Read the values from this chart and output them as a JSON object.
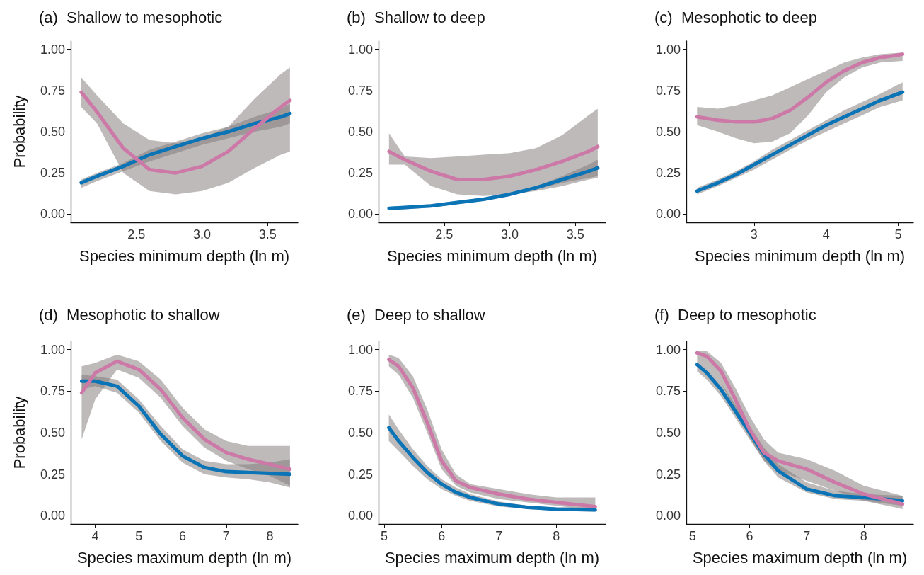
{
  "chart_data": [
    {
      "type": "line",
      "title": "(a)  Shallow to mesophotic",
      "xlabel": "Species minimum depth (ln m)",
      "ylabel": "Probability",
      "marker": "none",
      "grid": false,
      "x": [
        2.08,
        2.2,
        2.4,
        2.6,
        2.8,
        3.0,
        3.2,
        3.4,
        3.6,
        3.67
      ],
      "xlim": [
        2.0,
        3.73
      ],
      "xticks": [
        2.5,
        {
          "value": 3,
          "label": "3.0"
        },
        3.5
      ],
      "ylim": [
        -0.05,
        1.05
      ],
      "yticks": [
        {
          "value": 0,
          "label": "0.00"
        },
        {
          "value": 0.25,
          "label": "0.25"
        },
        {
          "value": 0.5,
          "label": "0.50"
        },
        {
          "value": 0.75,
          "label": "0.75"
        },
        {
          "value": 1,
          "label": "1.00"
        }
      ],
      "series": [
        {
          "color": "#0a74b6",
          "values": [
            0.19,
            0.23,
            0.29,
            0.36,
            0.41,
            0.46,
            0.5,
            0.55,
            0.59,
            0.61
          ],
          "lower": [
            0.16,
            0.2,
            0.26,
            0.32,
            0.37,
            0.42,
            0.46,
            0.5,
            0.53,
            0.55
          ],
          "upper": [
            0.21,
            0.25,
            0.31,
            0.39,
            0.44,
            0.49,
            0.53,
            0.59,
            0.64,
            0.67
          ]
        },
        {
          "color": "#cc79a7",
          "values": [
            0.74,
            0.62,
            0.4,
            0.27,
            0.25,
            0.29,
            0.38,
            0.52,
            0.65,
            0.69
          ],
          "lower": [
            0.65,
            0.55,
            0.25,
            0.14,
            0.12,
            0.14,
            0.19,
            0.28,
            0.36,
            0.38
          ],
          "upper": [
            0.83,
            0.72,
            0.55,
            0.45,
            0.43,
            0.46,
            0.53,
            0.7,
            0.85,
            0.89
          ]
        }
      ]
    },
    {
      "type": "line",
      "title": "(b)  Shallow to deep",
      "xlabel": "Species minimum depth (ln m)",
      "marker": "none",
      "grid": false,
      "x": [
        2.08,
        2.2,
        2.4,
        2.6,
        2.8,
        3.0,
        3.2,
        3.4,
        3.6,
        3.67
      ],
      "xlim": [
        2.0,
        3.73
      ],
      "xticks": [
        2.5,
        {
          "value": 3,
          "label": "3.0"
        },
        3.5
      ],
      "ylim": [
        -0.05,
        1.05
      ],
      "yticks": [
        {
          "value": 0,
          "label": "0.00"
        },
        {
          "value": 0.25,
          "label": "0.25"
        },
        {
          "value": 0.5,
          "label": "0.50"
        },
        {
          "value": 0.75,
          "label": "0.75"
        },
        {
          "value": 1,
          "label": "1.00"
        }
      ],
      "series": [
        {
          "color": "#0a74b6",
          "values": [
            0.035,
            0.04,
            0.05,
            0.07,
            0.09,
            0.12,
            0.16,
            0.21,
            0.26,
            0.28
          ],
          "lower": [
            0.025,
            0.03,
            0.04,
            0.06,
            0.08,
            0.11,
            0.15,
            0.19,
            0.22,
            0.23
          ],
          "upper": [
            0.045,
            0.05,
            0.06,
            0.08,
            0.1,
            0.13,
            0.17,
            0.23,
            0.3,
            0.33
          ]
        },
        {
          "color": "#cc79a7",
          "values": [
            0.38,
            0.33,
            0.26,
            0.21,
            0.21,
            0.23,
            0.27,
            0.32,
            0.38,
            0.41
          ],
          "lower": [
            0.3,
            0.3,
            0.17,
            0.12,
            0.11,
            0.12,
            0.14,
            0.17,
            0.21,
            0.22
          ],
          "upper": [
            0.49,
            0.35,
            0.34,
            0.35,
            0.36,
            0.37,
            0.4,
            0.48,
            0.6,
            0.64
          ]
        }
      ]
    },
    {
      "type": "line",
      "title": "(c)  Mesophotic to deep",
      "xlabel": "Species minimum depth (ln m)",
      "marker": "none",
      "grid": false,
      "x": [
        2.21,
        2.5,
        2.75,
        3.0,
        3.25,
        3.5,
        3.75,
        4.0,
        4.25,
        4.5,
        4.75,
        5.06
      ],
      "xlim": [
        2.06,
        5.21
      ],
      "xticks": [
        3,
        4,
        5
      ],
      "ylim": [
        -0.05,
        1.05
      ],
      "yticks": [
        {
          "value": 0,
          "label": "0.00"
        },
        {
          "value": 0.25,
          "label": "0.25"
        },
        {
          "value": 0.5,
          "label": "0.50"
        },
        {
          "value": 0.75,
          "label": "0.75"
        },
        {
          "value": 1,
          "label": "1.00"
        }
      ],
      "series": [
        {
          "color": "#0a74b6",
          "values": [
            0.14,
            0.19,
            0.24,
            0.3,
            0.36,
            0.42,
            0.48,
            0.54,
            0.59,
            0.64,
            0.69,
            0.74
          ],
          "lower": [
            0.12,
            0.17,
            0.22,
            0.27,
            0.33,
            0.39,
            0.45,
            0.5,
            0.55,
            0.6,
            0.65,
            0.69
          ],
          "upper": [
            0.16,
            0.21,
            0.26,
            0.32,
            0.39,
            0.45,
            0.51,
            0.57,
            0.63,
            0.68,
            0.73,
            0.8
          ]
        },
        {
          "color": "#cc79a7",
          "values": [
            0.59,
            0.57,
            0.56,
            0.56,
            0.58,
            0.63,
            0.71,
            0.8,
            0.87,
            0.92,
            0.95,
            0.97
          ],
          "lower": [
            0.54,
            0.5,
            0.46,
            0.43,
            0.44,
            0.49,
            0.6,
            0.74,
            0.83,
            0.89,
            0.92,
            0.93
          ],
          "upper": [
            0.65,
            0.64,
            0.66,
            0.69,
            0.72,
            0.77,
            0.82,
            0.87,
            0.92,
            0.95,
            0.97,
            0.98
          ]
        }
      ]
    },
    {
      "type": "line",
      "title": "(d)  Mesophotic to shallow",
      "xlabel": "Species maximum depth (ln m)",
      "ylabel": "Probability",
      "marker": "none",
      "grid": false,
      "x": [
        3.69,
        4.0,
        4.5,
        5.0,
        5.5,
        6.0,
        6.5,
        7.0,
        7.5,
        8.0,
        8.46
      ],
      "xlim": [
        3.44,
        8.64
      ],
      "xticks": [
        4,
        5,
        6,
        7,
        8
      ],
      "ylim": [
        -0.05,
        1.05
      ],
      "yticks": [
        {
          "value": 0,
          "label": "0.00"
        },
        {
          "value": 0.25,
          "label": "0.25"
        },
        {
          "value": 0.5,
          "label": "0.50"
        },
        {
          "value": 0.75,
          "label": "0.75"
        },
        {
          "value": 1,
          "label": "1.00"
        }
      ],
      "series": [
        {
          "color": "#0a74b6",
          "values": [
            0.81,
            0.81,
            0.78,
            0.66,
            0.49,
            0.36,
            0.29,
            0.265,
            0.26,
            0.255,
            0.25
          ],
          "lower": [
            0.76,
            0.78,
            0.74,
            0.62,
            0.45,
            0.32,
            0.25,
            0.23,
            0.22,
            0.2,
            0.17
          ],
          "upper": [
            0.85,
            0.84,
            0.82,
            0.7,
            0.54,
            0.4,
            0.33,
            0.31,
            0.31,
            0.32,
            0.34
          ]
        },
        {
          "color": "#cc79a7",
          "values": [
            0.74,
            0.86,
            0.93,
            0.88,
            0.76,
            0.59,
            0.46,
            0.38,
            0.34,
            0.31,
            0.28
          ],
          "lower": [
            0.46,
            0.7,
            0.88,
            0.83,
            0.71,
            0.54,
            0.41,
            0.33,
            0.28,
            0.24,
            0.18
          ],
          "upper": [
            0.9,
            0.92,
            0.97,
            0.93,
            0.82,
            0.65,
            0.52,
            0.45,
            0.42,
            0.42,
            0.42
          ]
        }
      ]
    },
    {
      "type": "line",
      "title": "(e)  Deep to shallow",
      "xlabel": "Species maximum depth (ln m)",
      "marker": "none",
      "grid": false,
      "x": [
        5.08,
        5.25,
        5.5,
        5.75,
        6.0,
        6.25,
        6.5,
        7.0,
        7.5,
        8.0,
        8.68
      ],
      "xlim": [
        4.9,
        8.86
      ],
      "xticks": [
        5,
        6,
        7,
        8
      ],
      "ylim": [
        -0.05,
        1.05
      ],
      "yticks": [
        {
          "value": 0,
          "label": "0.00"
        },
        {
          "value": 0.25,
          "label": "0.25"
        },
        {
          "value": 0.5,
          "label": "0.50"
        },
        {
          "value": 0.75,
          "label": "0.75"
        },
        {
          "value": 1,
          "label": "1.00"
        }
      ],
      "series": [
        {
          "color": "#0a74b6",
          "values": [
            0.53,
            0.45,
            0.35,
            0.26,
            0.19,
            0.14,
            0.11,
            0.07,
            0.05,
            0.04,
            0.035
          ],
          "lower": [
            0.45,
            0.39,
            0.3,
            0.22,
            0.16,
            0.12,
            0.09,
            0.055,
            0.04,
            0.03,
            0.025
          ],
          "upper": [
            0.61,
            0.52,
            0.4,
            0.3,
            0.22,
            0.17,
            0.13,
            0.085,
            0.06,
            0.05,
            0.05
          ]
        },
        {
          "color": "#cc79a7",
          "values": [
            0.94,
            0.9,
            0.77,
            0.56,
            0.33,
            0.21,
            0.17,
            0.13,
            0.1,
            0.08,
            0.055
          ],
          "lower": [
            0.9,
            0.85,
            0.71,
            0.5,
            0.28,
            0.18,
            0.14,
            0.1,
            0.08,
            0.06,
            0.03
          ],
          "upper": [
            0.97,
            0.95,
            0.84,
            0.64,
            0.4,
            0.25,
            0.19,
            0.16,
            0.13,
            0.11,
            0.11
          ]
        }
      ]
    },
    {
      "type": "line",
      "title": "(f)  Deep to mesophotic",
      "xlabel": "Species maximum depth (ln m)",
      "marker": "none",
      "grid": false,
      "x": [
        5.08,
        5.25,
        5.5,
        5.75,
        6.0,
        6.25,
        6.5,
        7.0,
        7.5,
        8.0,
        8.68
      ],
      "xlim": [
        4.89,
        8.87
      ],
      "xticks": [
        5,
        6,
        7,
        8
      ],
      "ylim": [
        -0.05,
        1.05
      ],
      "yticks": [
        {
          "value": 0,
          "label": "0.00"
        },
        {
          "value": 0.25,
          "label": "0.25"
        },
        {
          "value": 0.5,
          "label": "0.50"
        },
        {
          "value": 0.75,
          "label": "0.75"
        },
        {
          "value": 1,
          "label": "1.00"
        }
      ],
      "series": [
        {
          "color": "#0a74b6",
          "values": [
            0.91,
            0.86,
            0.76,
            0.63,
            0.5,
            0.37,
            0.27,
            0.16,
            0.12,
            0.11,
            0.09
          ],
          "lower": [
            0.87,
            0.82,
            0.72,
            0.59,
            0.46,
            0.33,
            0.23,
            0.14,
            0.1,
            0.09,
            0.06
          ],
          "upper": [
            0.94,
            0.9,
            0.8,
            0.67,
            0.54,
            0.41,
            0.31,
            0.2,
            0.15,
            0.13,
            0.12
          ]
        },
        {
          "color": "#cc79a7",
          "values": [
            0.98,
            0.96,
            0.87,
            0.7,
            0.52,
            0.38,
            0.33,
            0.28,
            0.2,
            0.13,
            0.07
          ],
          "lower": [
            0.94,
            0.9,
            0.8,
            0.64,
            0.47,
            0.33,
            0.27,
            0.21,
            0.15,
            0.09,
            0.04
          ],
          "upper": [
            0.99,
            0.99,
            0.92,
            0.77,
            0.6,
            0.46,
            0.38,
            0.34,
            0.27,
            0.18,
            0.12
          ]
        }
      ]
    }
  ]
}
